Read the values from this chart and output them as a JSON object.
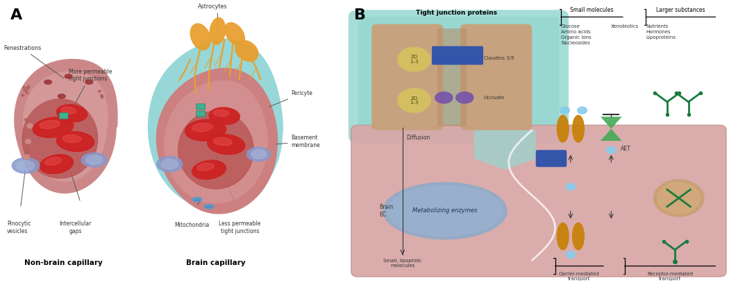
{
  "panel_A_label": "A",
  "panel_B_label": "B",
  "non_brain_label": "Non-brain capillary",
  "brain_label": "Brain capillary",
  "fenestrations": "Fenestrations",
  "more_permeable": "More permeable\ntight junctions",
  "pinocytic": "Pinocytic\nvesicles",
  "intercellular": "Intercellular\ngaps",
  "astrocytes": "Astrocytes",
  "pericyte": "Pericyte",
  "basement": "Basement\nmembrane",
  "mitochondria": "Mitochondria",
  "less_permeable": "Less permeable\ntight junctions",
  "tight_junction_title": "Tight junction proteins",
  "zo_13": "ZO\n1–3",
  "claudins": "Claudins 3/5",
  "occludin": "Occludin",
  "small_molecules": "Small molecules",
  "larger_substances": "Larger substances",
  "glucose_list": "Glucose\nAmino acids\nOrganic ions\nNucleosides",
  "xenobiotics": "Xenobiotics",
  "nutrients_list": "Nutrients\nHormones\nLipoproteins",
  "diffusion": "Diffusion",
  "metabolizing": "Metabolizing enzymes",
  "brain_ec": "Brain\nEC",
  "small_lipophilic": "Small, lipophilic\nmolecules",
  "aet": "AET",
  "carrier": "Carrier-mediated\ntransport",
  "receptor": "Receptor-mediated\ntransport",
  "bg": "#ffffff",
  "pink_outer": "#c87070",
  "pink_mid": "#d08888",
  "pink_inner": "#b85555",
  "dark_red": "#8b2020",
  "rbc_color": "#cc2222",
  "blue_oval": "#7799cc",
  "teal_tj": "#4da898",
  "teal_bg": "#7ecece",
  "teal_bubble": "#96d8d0",
  "beige_cell": "#c9a07a",
  "orange_ast": "#e8a030",
  "cell_pink": "#d9a8a8",
  "blue_carrier": "#3355aa",
  "gold_protein": "#c8820a",
  "green_icon": "#1a7a40",
  "tan_circle": "#c8a070",
  "blue_enzyme": "#88aacc",
  "text_dark": "#333333",
  "text_mid": "#555555",
  "purple_occ": "#7755aa",
  "yellow_zo": "#d4c060"
}
